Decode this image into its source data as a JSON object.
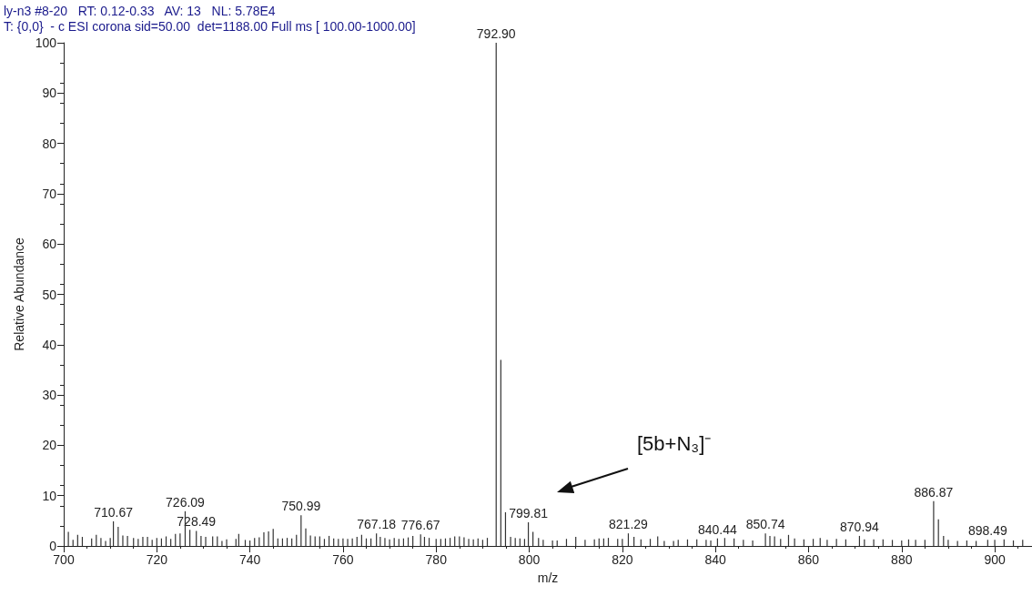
{
  "chart_data": {
    "type": "bar",
    "title": "ly-n3 #8-20   RT: 0.12-0.33   AV: 13   NL: 5.78E4",
    "subtitle": "T: {0,0}  - c ESI corona sid=50.00  det=1188.00 Full ms [ 100.00-1000.00]",
    "xlabel": "m/z",
    "ylabel": "Relative Abundance",
    "x": [
      701,
      702,
      703,
      704,
      706,
      707,
      708,
      709,
      710,
      710.67,
      711.7,
      712.7,
      713.7,
      715,
      716,
      717,
      718,
      719,
      720,
      721,
      722,
      723,
      724,
      725,
      726.09,
      727.1,
      728.49,
      729.5,
      730.5,
      732,
      733,
      734,
      735,
      737,
      737.6,
      739,
      740,
      741,
      742,
      743,
      744,
      745,
      746,
      747,
      748,
      749,
      750,
      750.99,
      752,
      753,
      754,
      755,
      756,
      757,
      758,
      759,
      760,
      761,
      762,
      763,
      764,
      765,
      766,
      767.18,
      768,
      769,
      770,
      771,
      772,
      773,
      774,
      775,
      776.67,
      777.5,
      778.5,
      780,
      781,
      782,
      783,
      784,
      785,
      786,
      787,
      788,
      789,
      790,
      791,
      792.9,
      793.9,
      794.9,
      796,
      797,
      798,
      799,
      799.81,
      800.8,
      802,
      803,
      805,
      806,
      808,
      810,
      812,
      814,
      815,
      816,
      817,
      819,
      820,
      821.29,
      822.5,
      824,
      826,
      827.6,
      829,
      831,
      832,
      834,
      836,
      838,
      839,
      840.44,
      842,
      844,
      846,
      848,
      850.74,
      851.7,
      852.7,
      854,
      855.7,
      857,
      859,
      861,
      862.5,
      864,
      866,
      868,
      870.94,
      872,
      874,
      876,
      878,
      880,
      881.5,
      883,
      885,
      886.87,
      887.9,
      889,
      890,
      892,
      894,
      896,
      898.49,
      900,
      902,
      904,
      906
    ],
    "values": [
      2.8,
      1.2,
      2.2,
      1.8,
      1.5,
      2.2,
      1.6,
      1.0,
      1.6,
      4.9,
      3.8,
      2.1,
      2.0,
      1.6,
      1.4,
      1.8,
      1.8,
      1.2,
      1.6,
      1.5,
      1.9,
      1.4,
      2.4,
      2.5,
      6.9,
      3.2,
      3.0,
      2.0,
      1.8,
      1.9,
      1.9,
      1.0,
      1.3,
      1.4,
      2.4,
      1.2,
      1.1,
      1.6,
      1.7,
      2.7,
      2.9,
      3.4,
      1.5,
      1.5,
      1.6,
      1.5,
      2.2,
      6.1,
      3.5,
      2.1,
      1.9,
      1.9,
      1.4,
      2.0,
      1.5,
      1.4,
      1.5,
      1.4,
      1.5,
      1.8,
      2.2,
      1.5,
      1.5,
      2.5,
      1.8,
      1.6,
      1.3,
      1.6,
      1.4,
      1.5,
      1.7,
      2.0,
      2.3,
      1.8,
      1.6,
      1.4,
      1.4,
      1.5,
      1.6,
      1.9,
      1.9,
      1.7,
      1.4,
      1.3,
      1.5,
      1.2,
      1.6,
      100,
      37,
      6.7,
      1.8,
      1.6,
      1.5,
      1.4,
      4.7,
      2.8,
      1.6,
      1.2,
      1.1,
      1.1,
      1.4,
      1.8,
      1.2,
      1.3,
      1.5,
      1.5,
      1.6,
      1.4,
      1.4,
      2.5,
      1.8,
      1.3,
      1.4,
      1.9,
      1.0,
      1.0,
      1.2,
      1.3,
      1.3,
      1.2,
      1.1,
      1.5,
      1.6,
      1.5,
      1.2,
      1.1,
      2.5,
      2.0,
      1.9,
      1.4,
      2.2,
      1.5,
      1.3,
      1.4,
      1.6,
      1.2,
      1.4,
      1.3,
      2.0,
      1.3,
      1.3,
      1.3,
      1.2,
      1.1,
      1.3,
      1.2,
      1.2,
      8.9,
      5.3,
      2.0,
      1.2,
      1.0,
      1.1,
      1.0,
      1.2,
      1.2,
      1.3,
      1.1,
      1.2
    ],
    "color": "#333333",
    "xlim": [
      700,
      908
    ],
    "xticks": [
      700,
      720,
      740,
      760,
      780,
      800,
      820,
      840,
      860,
      880,
      900
    ],
    "ylim": [
      0,
      100
    ],
    "yticks": [
      0,
      10,
      20,
      30,
      40,
      50,
      60,
      70,
      80,
      90,
      100
    ],
    "grid": false,
    "annotations": [
      {
        "text": "710.67",
        "x": 710.67,
        "y": 4.9
      },
      {
        "text": "726.09",
        "x": 726.09,
        "y": 6.9
      },
      {
        "text": "728.49",
        "x": 728.49,
        "y": 3.0
      },
      {
        "text": "750.99",
        "x": 750.99,
        "y": 6.1
      },
      {
        "text": "767.18",
        "x": 767.18,
        "y": 2.5
      },
      {
        "text": "776.67",
        "x": 776.67,
        "y": 2.3
      },
      {
        "text": "792.90",
        "x": 792.9,
        "y": 100
      },
      {
        "text": "799.81",
        "x": 799.81,
        "y": 4.7
      },
      {
        "text": "821.29",
        "x": 821.29,
        "y": 2.5
      },
      {
        "text": "840.44",
        "x": 840.44,
        "y": 1.5
      },
      {
        "text": "850.74",
        "x": 850.74,
        "y": 2.5
      },
      {
        "text": "870.94",
        "x": 870.94,
        "y": 2.0
      },
      {
        "text": "886.87",
        "x": 886.87,
        "y": 8.9
      },
      {
        "text": "898.49",
        "x": 898.49,
        "y": 1.2
      },
      "[5b+N₃]⁻"
    ]
  }
}
